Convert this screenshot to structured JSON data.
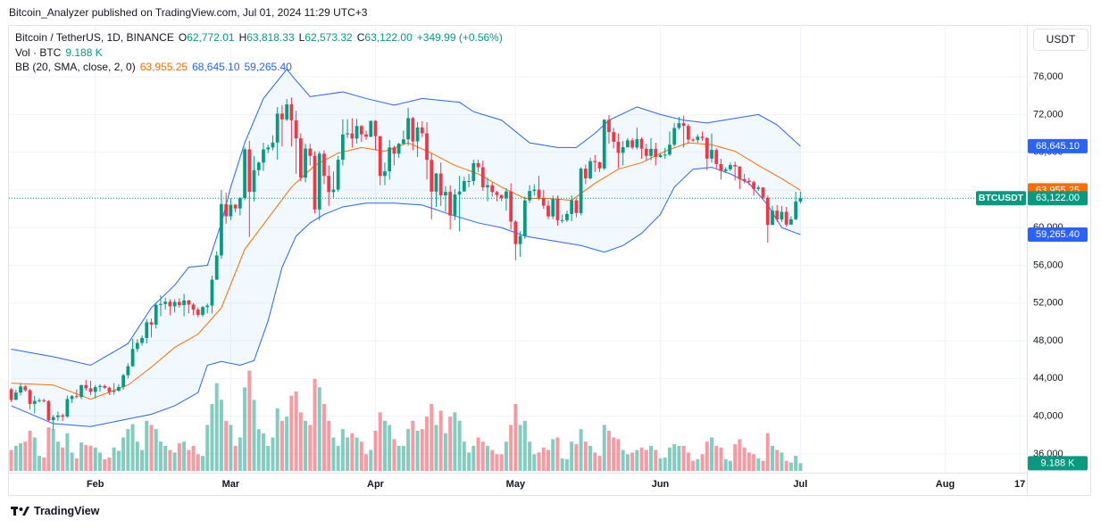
{
  "header": "Bitcoin_Analyzer published on TradingView.com, Jul 01, 2024 11:29 UTC+3",
  "footer_logo": "TradingView",
  "currency_button": "USDT",
  "chart_data": {
    "type": "candlestick",
    "title": "Bitcoin / TetherUS, 1D, BINANCE",
    "ohlc_legend": [
      {
        "label": "O",
        "value": "62,772.01"
      },
      {
        "label": "H",
        "value": "63,818.33"
      },
      {
        "label": "L",
        "value": "62,573.32"
      },
      {
        "label": "C",
        "value": "63,122.00"
      }
    ],
    "change": "+349.99 (+0.56%)",
    "symbol_label": "BTCUSDT",
    "last_value_label": "63,122.00",
    "up_color": "#089981",
    "down_color": "#f23645",
    "open": [
      42850,
      41730,
      42500,
      43150,
      42750,
      41300,
      41620,
      41680,
      41580,
      39570,
      39900,
      40080,
      39950,
      41820,
      42120,
      42030,
      43300,
      42950,
      42580,
      43080,
      43200,
      43010,
      42580,
      42700,
      43090,
      44340,
      45290,
      47130,
      47770,
      48290,
      49960,
      49700,
      51800,
      51900,
      52140,
      51660,
      52120,
      51780,
      52280,
      51840,
      51300,
      50740,
      51570,
      51730,
      54480,
      57050,
      62500,
      61200,
      62430,
      62030,
      63130,
      68300,
      63800,
      66100,
      66900,
      68300,
      68500,
      69020,
      72100,
      71480,
      73080,
      71390,
      69470,
      65300,
      68390,
      67610,
      61930,
      67850,
      65490,
      63780,
      64040,
      67210,
      69880,
      69990,
      69450,
      70780,
      69890,
      69640,
      71330,
      69700,
      65480,
      65980,
      68510,
      67840,
      68900,
      69360,
      71620,
      69150,
      70630,
      70010,
      67190,
      63820,
      65740,
      63420,
      63790,
      61280,
      63510,
      63840,
      64940,
      64940,
      66840,
      66410,
      64280,
      64500,
      63770,
      63460,
      63120,
      63840,
      60640,
      58250,
      59120,
      62890,
      63890,
      64030,
      63160,
      62330,
      61190,
      63050,
      60790,
      60790,
      61450,
      62900,
      61550,
      66250,
      65230,
      67050,
      66940,
      66280,
      71450,
      70140,
      69120,
      67930,
      68530,
      69260,
      68500,
      69390,
      68370,
      67610,
      68360,
      67490,
      67710,
      67750,
      68800,
      70570,
      71080,
      70790,
      69340,
      69310,
      69650,
      69510,
      67320,
      68240,
      66750,
      66010,
      66190,
      66640,
      66490,
      65150,
      64960,
      64830,
      64100,
      64260,
      63180,
      60280,
      61800,
      60860,
      61680,
      60320,
      60890,
      62772.01
    ],
    "high": [
      43000,
      42800,
      43500,
      43300,
      42900,
      42150,
      41900,
      41860,
      41700,
      40130,
      40500,
      40280,
      42200,
      42230,
      42840,
      43310,
      43850,
      43750,
      43300,
      43400,
      43380,
      43120,
      43500,
      43400,
      44500,
      45600,
      48200,
      48170,
      48550,
      50300,
      50350,
      52000,
      52800,
      52550,
      52400,
      52400,
      52500,
      52980,
      52350,
      52000,
      51550,
      51700,
      51950,
      54900,
      57500,
      64000,
      63700,
      63100,
      62500,
      63250,
      68500,
      69200,
      67600,
      67000,
      69000,
      68800,
      69800,
      72800,
      73000,
      73650,
      73800,
      72400,
      70000,
      68900,
      68900,
      68100,
      68100,
      68200,
      66600,
      65950,
      67600,
      71500,
      71500,
      71600,
      71550,
      70900,
      70300,
      71350,
      71400,
      69700,
      66900,
      69300,
      68700,
      69000,
      70300,
      72700,
      71750,
      71200,
      71300,
      71200,
      67900,
      65800,
      66900,
      64400,
      64500,
      64100,
      65500,
      65400,
      65700,
      67200,
      67200,
      67100,
      65300,
      64800,
      63900,
      63500,
      64200,
      64700,
      60800,
      59600,
      63300,
      64500,
      64600,
      65500,
      64000,
      62900,
      63400,
      63400,
      61400,
      61800,
      63400,
      63100,
      66400,
      66700,
      67400,
      67700,
      67000,
      71500,
      71950,
      70600,
      70000,
      69200,
      69500,
      69500,
      70600,
      69600,
      68900,
      69500,
      69000,
      67900,
      68450,
      70200,
      71100,
      71750,
      71900,
      71000,
      69500,
      69900,
      70200,
      69600,
      70000,
      68400,
      67300,
      66400,
      66900,
      67000,
      66500,
      65700,
      65300,
      65000,
      64500,
      64300,
      63400,
      62300,
      62400,
      62300,
      62200,
      61200,
      63800,
      63818.33
    ],
    "low": [
      41500,
      41700,
      42200,
      42600,
      40700,
      40300,
      41450,
      41450,
      39450,
      38550,
      39500,
      39480,
      39820,
      41400,
      41900,
      41800,
      42700,
      42250,
      41880,
      42600,
      42880,
      42250,
      42250,
      42580,
      42800,
      44000,
      45250,
      46800,
      47500,
      47700,
      48350,
      49300,
      50600,
      51300,
      50700,
      51000,
      51500,
      50600,
      50900,
      50700,
      50500,
      50550,
      50900,
      50900,
      54450,
      56700,
      60400,
      60800,
      61600,
      61300,
      62900,
      59000,
      62800,
      65500,
      66000,
      67900,
      68200,
      67200,
      68600,
      71300,
      68600,
      65700,
      64900,
      64800,
      66600,
      61500,
      60800,
      64600,
      62300,
      63200,
      63800,
      66600,
      69500,
      68500,
      68900,
      69100,
      69300,
      69600,
      68200,
      64500,
      64500,
      65100,
      66600,
      67400,
      68800,
      68700,
      68200,
      67500,
      69600,
      65100,
      60900,
      62200,
      62300,
      61700,
      59800,
      60800,
      59600,
      63800,
      64300,
      64500,
      65900,
      63900,
      62800,
      63300,
      62800,
      62800,
      61800,
      59800,
      56550,
      56900,
      58800,
      62600,
      63400,
      62900,
      62000,
      60900,
      60900,
      60200,
      60500,
      60600,
      60700,
      61100,
      61300,
      64600,
      65100,
      65900,
      65900,
      66100,
      68900,
      68400,
      66300,
      66600,
      68500,
      68300,
      68300,
      67300,
      67100,
      67150,
      66600,
      67400,
      67300,
      67600,
      68600,
      70400,
      68500,
      68900,
      69100,
      69000,
      69200,
      66100,
      66900,
      66300,
      65100,
      65800,
      66000,
      65000,
      64100,
      64700,
      64500,
      63400,
      63900,
      63000,
      58400,
      60300,
      60600,
      60600,
      60100,
      60300,
      60800,
      62573.32
    ],
    "close": [
      41730,
      42500,
      43150,
      42750,
      41300,
      41620,
      41680,
      41580,
      39570,
      39900,
      40080,
      39950,
      41820,
      42120,
      42030,
      43300,
      42950,
      42580,
      43080,
      43200,
      43010,
      42580,
      42700,
      43090,
      44340,
      45290,
      47130,
      47770,
      48290,
      49960,
      49700,
      51800,
      51900,
      52140,
      51660,
      52120,
      51780,
      52280,
      51840,
      51300,
      50740,
      51570,
      51730,
      54480,
      57050,
      62500,
      61200,
      62430,
      62030,
      63130,
      68300,
      63800,
      66100,
      66900,
      68300,
      68500,
      69020,
      72100,
      71480,
      73080,
      71390,
      69470,
      65300,
      68390,
      67610,
      61930,
      67850,
      65490,
      63780,
      64040,
      67210,
      69880,
      69990,
      69450,
      70780,
      69890,
      69640,
      71330,
      69700,
      65480,
      65980,
      68510,
      67840,
      68900,
      69360,
      71620,
      69150,
      70630,
      70010,
      67190,
      63820,
      65740,
      63420,
      63790,
      61280,
      63510,
      63840,
      64940,
      64940,
      66840,
      66410,
      64280,
      64500,
      63770,
      63460,
      63120,
      63840,
      60640,
      58250,
      59120,
      62890,
      63890,
      64030,
      63160,
      62330,
      61190,
      63050,
      60790,
      60790,
      61450,
      62900,
      61550,
      66250,
      65230,
      67050,
      66940,
      66280,
      71450,
      70140,
      69120,
      67930,
      68530,
      69260,
      68500,
      69390,
      68370,
      67610,
      68360,
      67490,
      67710,
      67750,
      68800,
      70570,
      71080,
      70790,
      69340,
      69310,
      69650,
      69510,
      67320,
      68240,
      66750,
      66010,
      66190,
      66640,
      66490,
      65150,
      64960,
      64830,
      64100,
      64260,
      63180,
      60280,
      61800,
      60860,
      61680,
      60320,
      60890,
      62772.01,
      63122
    ],
    "xlim": [
      -0.5,
      217.5
    ],
    "xticks": [
      {
        "value": 18,
        "label": "Feb"
      },
      {
        "value": 47,
        "label": "Mar"
      },
      {
        "value": 78,
        "label": "Apr"
      },
      {
        "value": 108,
        "label": "May"
      },
      {
        "value": 139,
        "label": "Jun"
      },
      {
        "value": 169,
        "label": "Jul"
      },
      {
        "value": 200,
        "label": "Aug"
      },
      {
        "value": 216,
        "label": "17"
      }
    ],
    "ylim": [
      34000,
      81500
    ],
    "yticks": [
      {
        "value": 36000,
        "label": "36,000"
      },
      {
        "value": 40000,
        "label": "40,000"
      },
      {
        "value": 44000,
        "label": "44,000"
      },
      {
        "value": 48000,
        "label": "48,000"
      },
      {
        "value": 52000,
        "label": "52,000"
      },
      {
        "value": 56000,
        "label": "56,000"
      },
      {
        "value": 60000,
        "label": "60,000"
      },
      {
        "value": 64000,
        "label": "64,000"
      },
      {
        "value": 68000,
        "label": "68,000"
      },
      {
        "value": 72000,
        "label": "72,000"
      },
      {
        "value": 76000,
        "label": "76,000"
      }
    ],
    "grid": true,
    "volume": {
      "name": "Vol · BTC",
      "last_value_label": "9.188 K",
      "ylim": [
        0,
        160000
      ],
      "values": [
        25000,
        30000,
        33000,
        35000,
        48000,
        40000,
        18000,
        16000,
        52000,
        50000,
        35000,
        28000,
        45000,
        22000,
        15000,
        34000,
        31000,
        30000,
        28000,
        22000,
        14000,
        16000,
        28000,
        24000,
        40000,
        50000,
        56000,
        35000,
        25000,
        60000,
        55000,
        50000,
        35000,
        30000,
        25000,
        22000,
        33000,
        35000,
        25000,
        30000,
        20000,
        18000,
        55000,
        80000,
        105000,
        85000,
        60000,
        55000,
        30000,
        40000,
        100000,
        120000,
        85000,
        50000,
        45000,
        30000,
        40000,
        75000,
        60000,
        65000,
        90000,
        95000,
        70000,
        60000,
        55000,
        110000,
        100000,
        80000,
        60000,
        40000,
        30000,
        50000,
        40000,
        45000,
        40000,
        35000,
        20000,
        25000,
        48000,
        70000,
        60000,
        55000,
        38000,
        30000,
        30000,
        50000,
        60000,
        48000,
        50000,
        65000,
        80000,
        55000,
        72000,
        45000,
        65000,
        70000,
        60000,
        35000,
        22000,
        30000,
        40000,
        35000,
        30000,
        25000,
        20000,
        20000,
        35000,
        55000,
        80000,
        55000,
        60000,
        35000,
        20000,
        22000,
        28000,
        25000,
        38000,
        40000,
        15000,
        14000,
        35000,
        32000,
        50000,
        35000,
        30000,
        22000,
        18000,
        55000,
        48000,
        40000,
        38000,
        25000,
        20000,
        22000,
        25000,
        28000,
        25000,
        30000,
        25000,
        15000,
        16000,
        28000,
        32000,
        30000,
        30000,
        22000,
        12000,
        14000,
        20000,
        35000,
        40000,
        30000,
        28000,
        14000,
        12000,
        32000,
        38000,
        28000,
        22000,
        20000,
        15000,
        12000,
        45000,
        30000,
        25000,
        22000,
        12000,
        10000,
        18000,
        9188
      ]
    },
    "indicator": {
      "name": "BB (20, SMA, close, 2, 0)",
      "fill_color": "#2196f3",
      "series": [
        {
          "color": "#ff6d00",
          "last_value_label": "63,955.25",
          "x": [
            0,
            9,
            17,
            25,
            30,
            35,
            40,
            45,
            50,
            55,
            60,
            65,
            70,
            75,
            80,
            85,
            90,
            95,
            100,
            105,
            110,
            115,
            120,
            125,
            130,
            135,
            140,
            145,
            150,
            155,
            160,
            165,
            169
          ],
          "values": [
            43500,
            43300,
            41800,
            43300,
            45200,
            47300,
            48700,
            51500,
            57700,
            61000,
            64300,
            66600,
            67900,
            68500,
            68100,
            69000,
            67900,
            66600,
            65700,
            64300,
            63100,
            63100,
            62900,
            64700,
            66200,
            66900,
            68100,
            69000,
            68800,
            68100,
            66600,
            65200,
            63955.25
          ]
        },
        {
          "color": "#2962ff",
          "last_value_label": "68,645.10",
          "x": [
            0,
            9,
            17,
            25,
            30,
            35,
            38,
            42,
            45,
            47,
            50,
            54,
            59,
            61,
            64,
            71,
            76,
            82,
            88,
            96,
            99,
            105,
            111,
            117,
            121,
            125,
            128,
            134,
            139,
            144,
            149,
            155,
            160,
            164,
            169
          ],
          "values": [
            47100,
            46300,
            45400,
            47700,
            51500,
            53900,
            55800,
            56000,
            60500,
            64300,
            69000,
            73700,
            76800,
            75600,
            73900,
            74400,
            73700,
            73000,
            73700,
            73300,
            72300,
            71400,
            69000,
            68500,
            68500,
            70000,
            71400,
            72800,
            72000,
            71400,
            71100,
            71600,
            72000,
            70900,
            68645.1
          ]
        },
        {
          "color": "#2962ff",
          "last_value_label": "59,265.40",
          "x": [
            0,
            9,
            17,
            25,
            30,
            35,
            40,
            42,
            45,
            49,
            52,
            55,
            58,
            61,
            64,
            67,
            71,
            76,
            82,
            88,
            94,
            100,
            105,
            110,
            116,
            122,
            127,
            131,
            135,
            139,
            142,
            146,
            150,
            154,
            158,
            162,
            165,
            169
          ],
          "values": [
            41100,
            39200,
            38900,
            39700,
            40200,
            41100,
            42500,
            45400,
            45800,
            45400,
            45900,
            50100,
            55800,
            59100,
            60500,
            61400,
            62200,
            62600,
            62600,
            62400,
            61400,
            60500,
            60000,
            59100,
            58600,
            58100,
            57400,
            58100,
            59400,
            61400,
            64300,
            66200,
            66400,
            65700,
            64700,
            62400,
            60000,
            59265.4
          ]
        }
      ]
    }
  }
}
